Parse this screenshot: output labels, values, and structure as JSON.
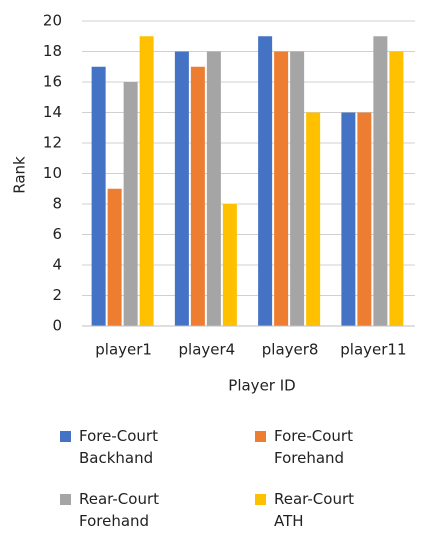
{
  "chart_data": {
    "type": "bar",
    "x_label": "Player ID",
    "y_label": "Rank",
    "categories": [
      "player1",
      "player4",
      "player8",
      "player11"
    ],
    "series": [
      {
        "name": "Fore-Court Backhand",
        "color": "#4472c4",
        "values": [
          17,
          18,
          19,
          14
        ]
      },
      {
        "name": "Fore-Court Forehand",
        "color": "#ed7d31",
        "values": [
          9,
          17,
          18,
          14
        ]
      },
      {
        "name": "Rear-Court Forehand",
        "color": "#a5a5a5",
        "values": [
          16,
          18,
          18,
          19
        ]
      },
      {
        "name": "Rear-Court ATH",
        "color": "#ffc000",
        "values": [
          19,
          8,
          14,
          18
        ]
      }
    ],
    "ylim": [
      0,
      20
    ],
    "yticks": [
      0,
      2,
      4,
      6,
      8,
      10,
      12,
      14,
      16,
      18,
      20
    ],
    "grid": true
  }
}
